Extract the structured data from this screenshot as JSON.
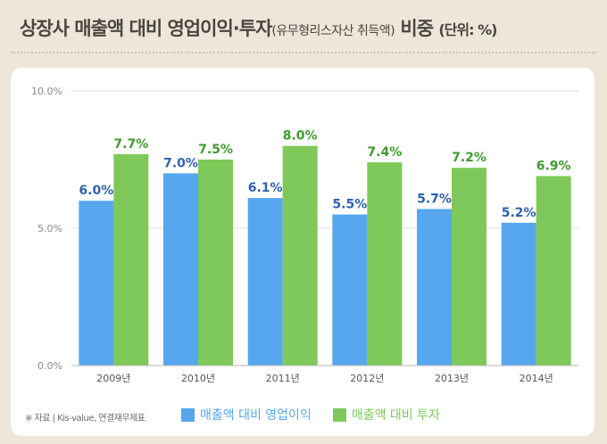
{
  "header": {
    "title_main": "상장사 매출액 대비 영업이익·투자",
    "title_sub": "(유무형리스자산 취득액)",
    "title_tail": " 비중 ",
    "title_unit": "(단위: %)"
  },
  "footer": {
    "source": "※ 자료 | Kis-value, 연결재무제표"
  },
  "colors": {
    "series_blue": "#56a7ee",
    "series_green": "#7ec95a",
    "grid": "#e2e2e2",
    "axis": "#b9b9b9"
  },
  "chart_data": {
    "type": "bar",
    "categories": [
      "2009년",
      "2010년",
      "2011년",
      "2012년",
      "2013년",
      "2014년"
    ],
    "series": [
      {
        "name": "매출액 대비 영업이익",
        "values": [
          6.0,
          7.0,
          6.1,
          5.5,
          5.7,
          5.2
        ]
      },
      {
        "name": "매출액 대비 투자",
        "values": [
          7.7,
          7.5,
          8.0,
          7.4,
          7.2,
          6.9
        ]
      }
    ],
    "data_labels": [
      [
        "6.0%",
        "7.0%",
        "6.1%",
        "5.5%",
        "5.7%",
        "5.2%"
      ],
      [
        "7.7%",
        "7.5%",
        "8.0%",
        "7.4%",
        "7.2%",
        "6.9%"
      ]
    ],
    "ylim": [
      0,
      10
    ],
    "yticks": [
      0,
      5,
      10
    ],
    "ytick_labels": [
      "0.0%",
      "5.0%",
      "10.0%"
    ],
    "grid": true,
    "legend_position": "bottom"
  }
}
